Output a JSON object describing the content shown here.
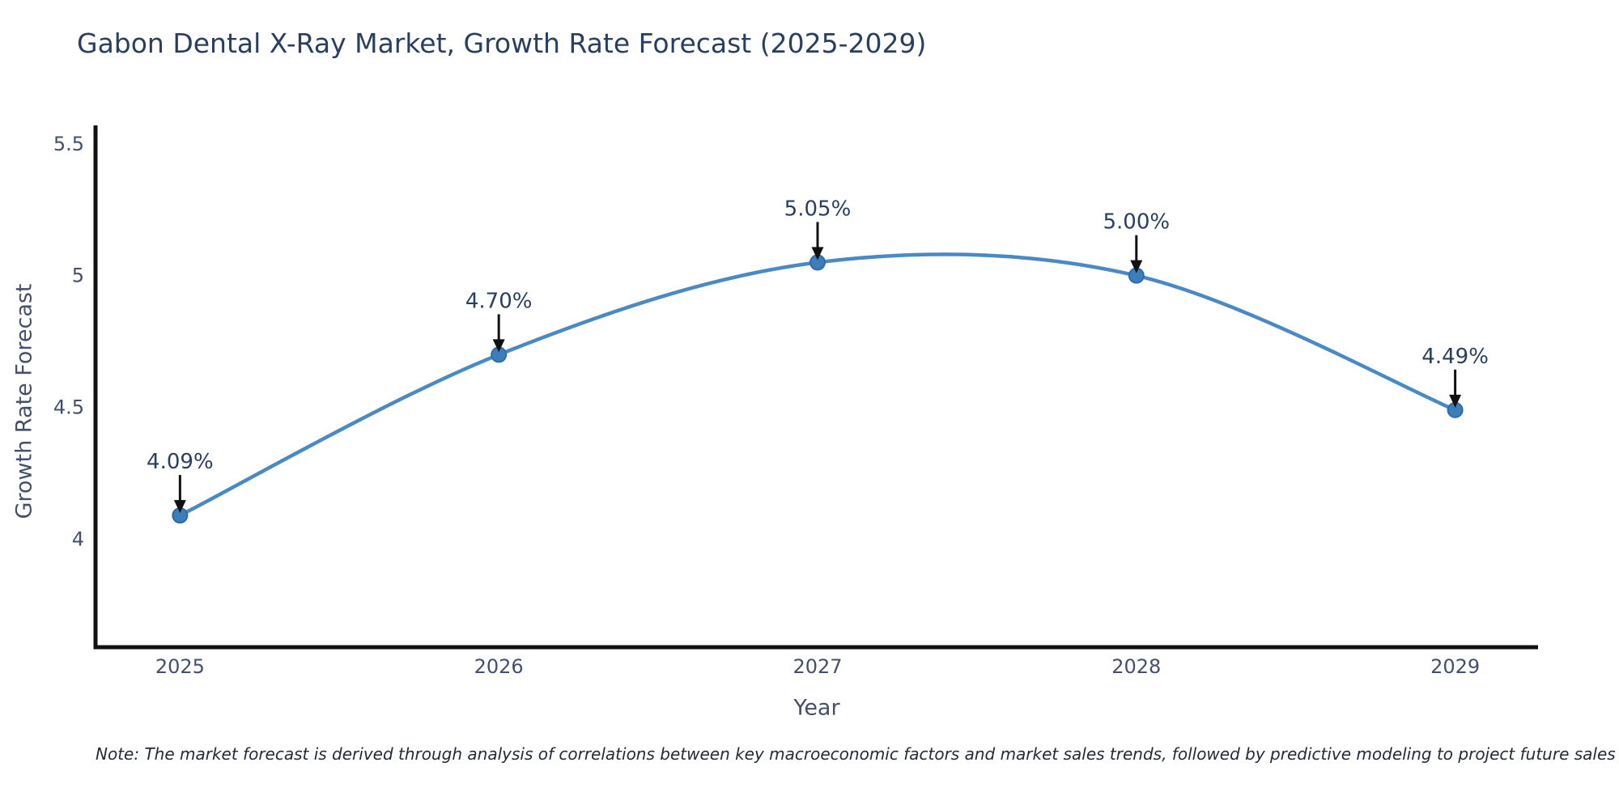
{
  "chart_data": {
    "type": "line",
    "title": "Gabon Dental X-Ray Market, Growth Rate Forecast (2025-2029)",
    "xlabel": "Year",
    "ylabel": "Growth Rate Forecast",
    "x": [
      2025,
      2026,
      2027,
      2028,
      2029
    ],
    "values": [
      4.09,
      4.7,
      5.05,
      5.0,
      4.49
    ],
    "point_labels": [
      "4.09%",
      "4.70%",
      "5.05%",
      "5.00%",
      "4.49%"
    ],
    "x_tick_labels": [
      "2025",
      "2026",
      "2027",
      "2028",
      "2029"
    ],
    "y_ticks": [
      4,
      4.5,
      5,
      5.5
    ],
    "y_tick_labels": [
      "4",
      "4.5",
      "5",
      "5.5"
    ],
    "xlim": [
      2024.735,
      2029.26
    ],
    "ylim": [
      3.59,
      5.57
    ],
    "grid": false,
    "legend": false,
    "line_shape": "spline",
    "colors": {
      "line": "#4a8ac4",
      "marker_fill": "#3d7eba",
      "marker_edge": "#2f6ba8",
      "axis_line": "#111111",
      "title_text": "#2a3f5f",
      "tick_text": "#44506b",
      "annotation_text": "#2a3f5f",
      "arrow": "#111111",
      "background": "#ffffff"
    }
  },
  "note": "Note: The market forecast is derived through analysis of correlations between key macroeconomic factors and market sales trends, followed by predictive modeling to project future sales"
}
